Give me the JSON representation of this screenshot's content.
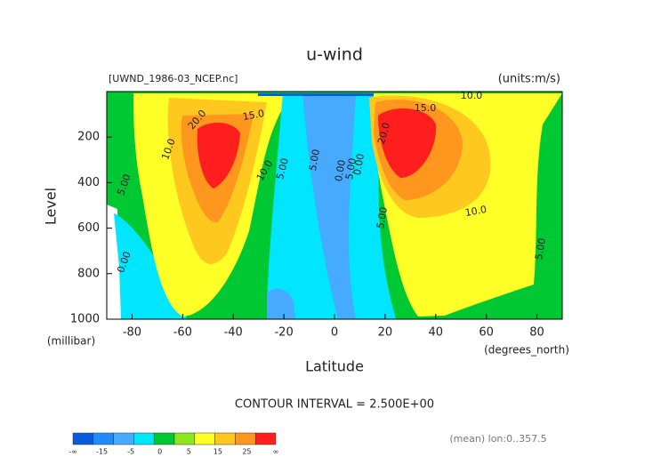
{
  "chart_data": {
    "type": "contour",
    "title": "u-wind",
    "subtitle": "[UWND_1986-03_NCEP.nc]",
    "units": "(units:m/s)",
    "x_label": "Latitude",
    "x_unit": "(degrees_north)",
    "y_label": "Level",
    "y_unit": "(millibar)",
    "xlim": [
      -90,
      90
    ],
    "xticks": [
      -80,
      -60,
      -40,
      -20,
      0,
      20,
      40,
      60,
      80
    ],
    "ylim": [
      1000,
      0
    ],
    "yticks": [
      200,
      400,
      600,
      800,
      1000
    ],
    "contour_labels": [
      "20.0",
      "15.0",
      "10.0",
      "5.00",
      "10.0",
      "5.00",
      "0.00",
      "5.00",
      "0.00",
      "5.00",
      "15.0",
      "20.0",
      "5.00",
      "10.0",
      "5.00",
      "10.0",
      "0.00"
    ],
    "contour_interval_note": "CONTOUR INTERVAL = 2.500E+00",
    "footnote": "(mean) lon:0..357.5",
    "colorbar": {
      "colors": [
        "#0a5adc",
        "#1e8cff",
        "#46aaff",
        "#00e6ff",
        "#00c832",
        "#8ce61e",
        "#ffff28",
        "#ffc81e",
        "#ff961e",
        "#ff1e1e"
      ],
      "labels": [
        "-∞",
        "-15",
        "-5",
        "0",
        "5",
        "15",
        "25",
        "∞"
      ]
    }
  }
}
